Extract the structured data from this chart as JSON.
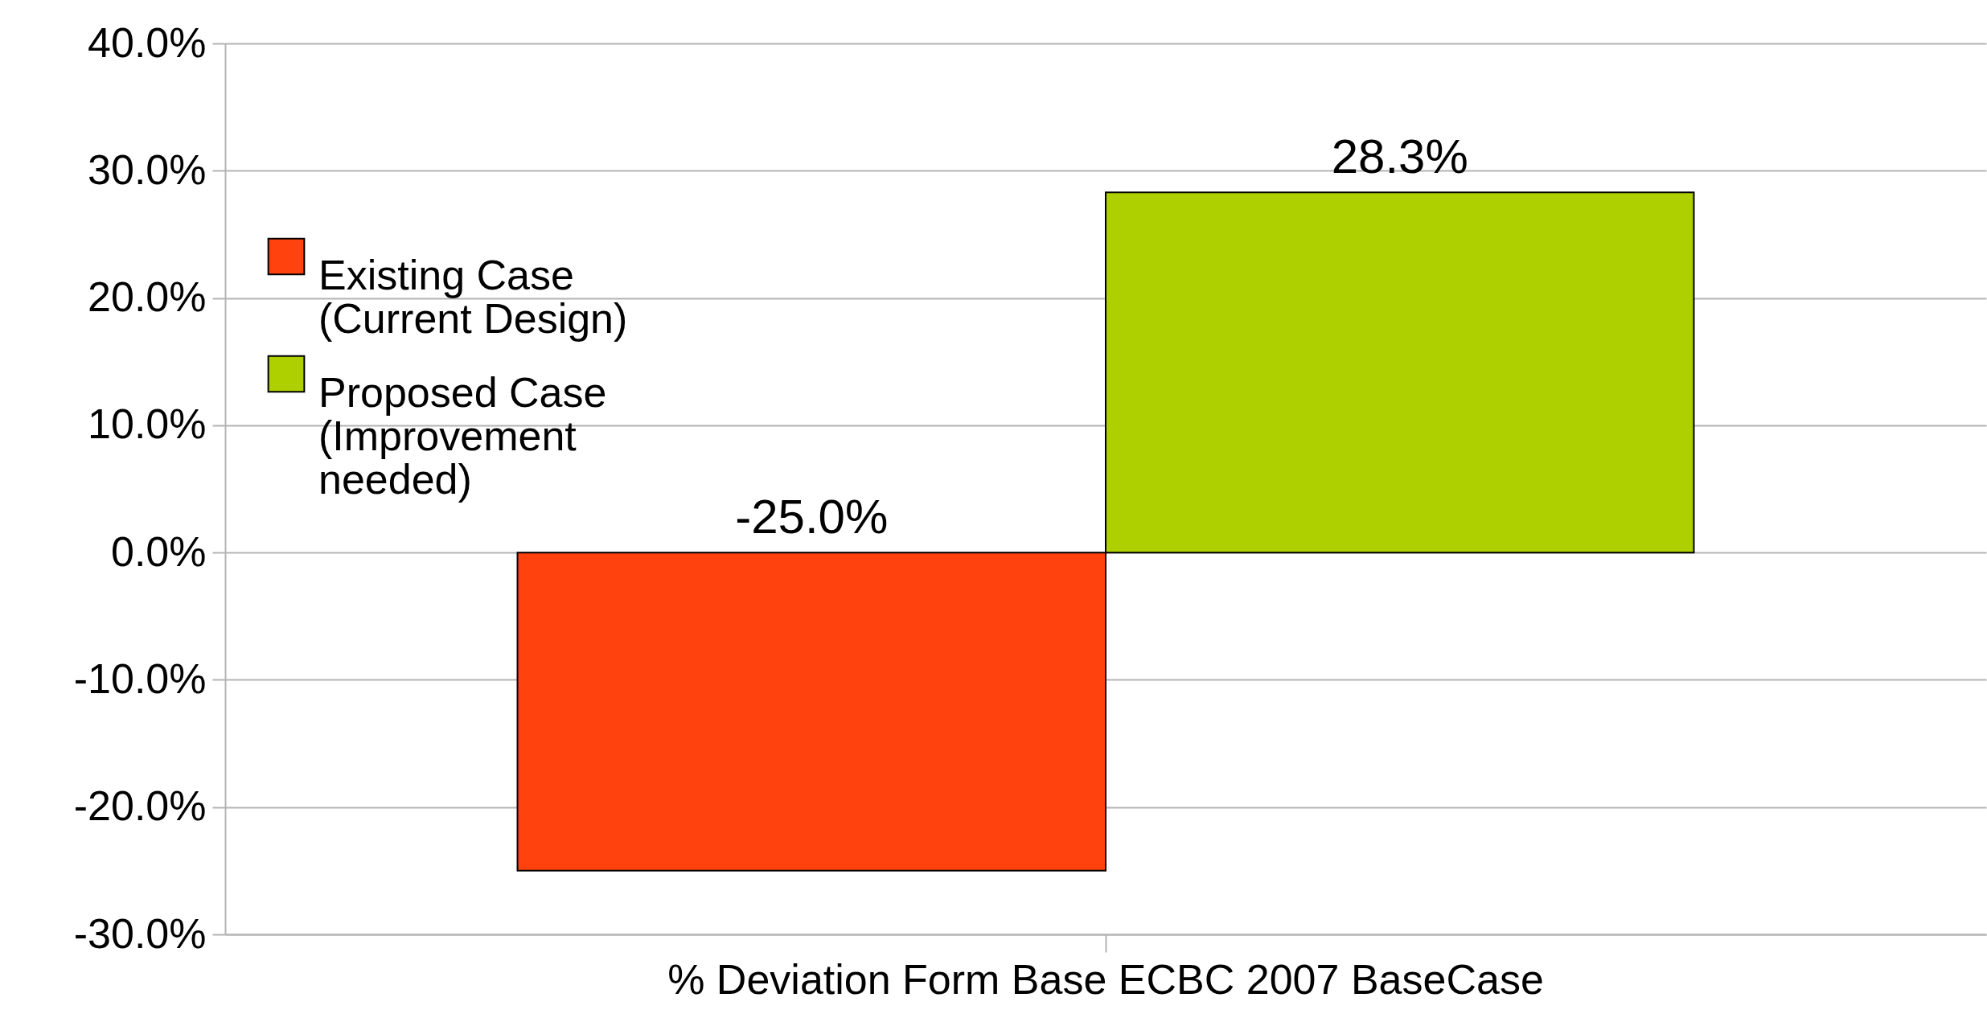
{
  "chart_data": {
    "type": "bar",
    "categories": [
      "% Deviation Form Base ECBC 2007 BaseCase"
    ],
    "series": [
      {
        "name": "Existing Case (Current Design)",
        "color": "#ff420e",
        "values": [
          -25.0
        ],
        "value_labels": [
          "-25.0%"
        ]
      },
      {
        "name": "Proposed Case (Improvement needed)",
        "color": "#aecf00",
        "values": [
          28.3
        ],
        "value_labels": [
          "28.3%"
        ]
      }
    ],
    "ylim": [
      -30,
      40
    ],
    "yticks": [
      {
        "value": -30,
        "label": "-30.0%"
      },
      {
        "value": -20,
        "label": "-20.0%"
      },
      {
        "value": -10,
        "label": "-10.0%"
      },
      {
        "value": 0,
        "label": "0.0%"
      },
      {
        "value": 10,
        "label": "10.0%"
      },
      {
        "value": 20,
        "label": "20.0%"
      },
      {
        "value": 30,
        "label": "30.0%"
      },
      {
        "value": 40,
        "label": "40.0%"
      }
    ],
    "grid": "y",
    "legend": "top left"
  }
}
